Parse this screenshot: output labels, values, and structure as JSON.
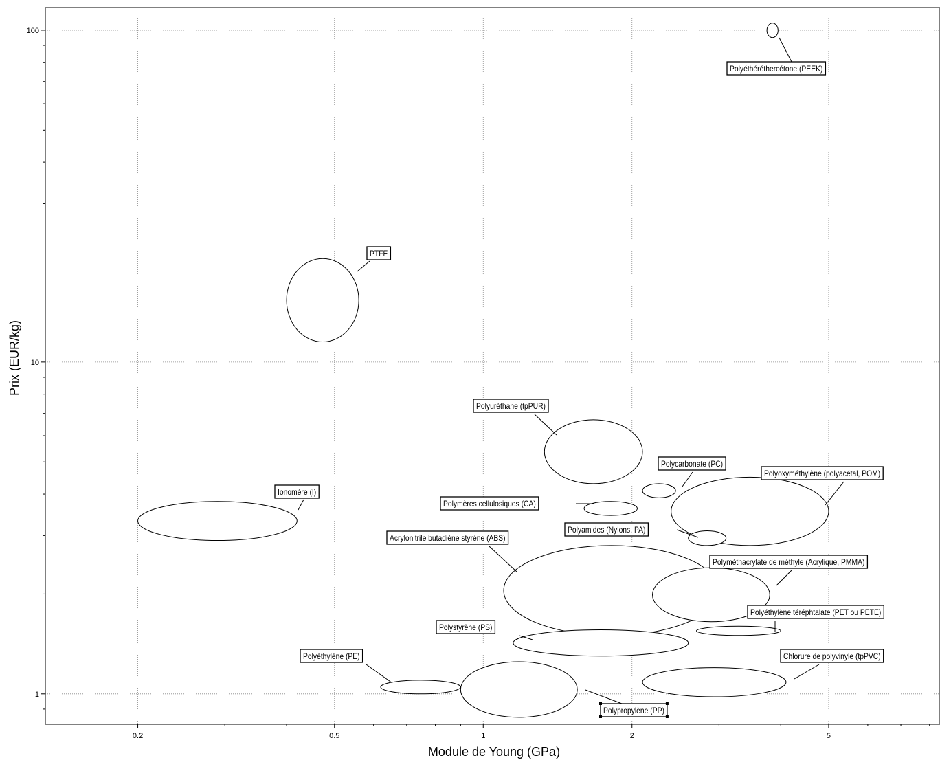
{
  "chart_data": {
    "type": "scatter",
    "xlabel": "Module de Young (GPa)",
    "ylabel": "Prix (EUR/kg)",
    "xscale": "log",
    "yscale": "log",
    "xlim": [
      0.13,
      8.4
    ],
    "ylim": [
      0.81,
      117
    ],
    "x_ticks": [
      0.2,
      0.5,
      1,
      2,
      5
    ],
    "x_tick_labels": [
      "0.2",
      "0.5",
      "1",
      "2",
      "5"
    ],
    "y_ticks": [
      1,
      10,
      100
    ],
    "y_tick_labels": [
      "1",
      "10",
      "100"
    ],
    "grid": true,
    "materials": [
      {
        "label": "Polyéthéréthercétone (PEEK)",
        "E": [
          3.75,
          3.95
        ],
        "price": [
          95,
          105
        ]
      },
      {
        "label": "PTFE",
        "E": [
          0.4,
          0.56
        ],
        "price": [
          11.5,
          20.5
        ]
      },
      {
        "label": "Polyuréthane (tpPUR)",
        "E": [
          1.33,
          2.1
        ],
        "price": [
          4.3,
          6.7
        ]
      },
      {
        "label": "Polycarbonate (PC)",
        "E": [
          2.1,
          2.45
        ],
        "price": [
          3.9,
          4.3
        ]
      },
      {
        "label": "Polyoxyméthylène (polyacétal, POM)",
        "E": [
          2.4,
          5.0
        ],
        "price": [
          2.8,
          4.5
        ]
      },
      {
        "label": "Polymères cellulosiques (CA)",
        "E": [
          1.6,
          2.05
        ],
        "price": [
          3.45,
          3.8
        ]
      },
      {
        "label": "Ionomère (I)",
        "E": [
          0.2,
          0.42
        ],
        "price": [
          2.9,
          3.8
        ]
      },
      {
        "label": "Polyamides (Nylons, PA)",
        "E": [
          2.6,
          3.1
        ],
        "price": [
          2.8,
          3.1
        ]
      },
      {
        "label": "Acrylonitrile butadiène styrène (ABS)",
        "E": [
          1.1,
          3.0
        ],
        "price": [
          1.5,
          2.8
        ]
      },
      {
        "label": "Polyméthacrylate de méthyle (Acrylique, PMMA)",
        "E": [
          2.2,
          3.8
        ],
        "price": [
          1.65,
          2.4
        ]
      },
      {
        "label": "Polyéthylène téréphtalate (PET ou PETE)",
        "E": [
          2.7,
          4.0
        ],
        "price": [
          1.5,
          1.6
        ]
      },
      {
        "label": "Polystyrène (PS)",
        "E": [
          1.15,
          2.6
        ],
        "price": [
          1.3,
          1.56
        ]
      },
      {
        "label": "Chlorure de polyvinyle (tpPVC)",
        "E": [
          2.1,
          4.1
        ],
        "price": [
          0.98,
          1.2
        ]
      },
      {
        "label": "Polyéthylène (PE)",
        "E": [
          0.62,
          0.9
        ],
        "price": [
          1.0,
          1.1
        ]
      },
      {
        "label": "Polypropylène (PP)",
        "E": [
          0.9,
          1.55
        ],
        "price": [
          0.85,
          1.25
        ]
      }
    ]
  }
}
